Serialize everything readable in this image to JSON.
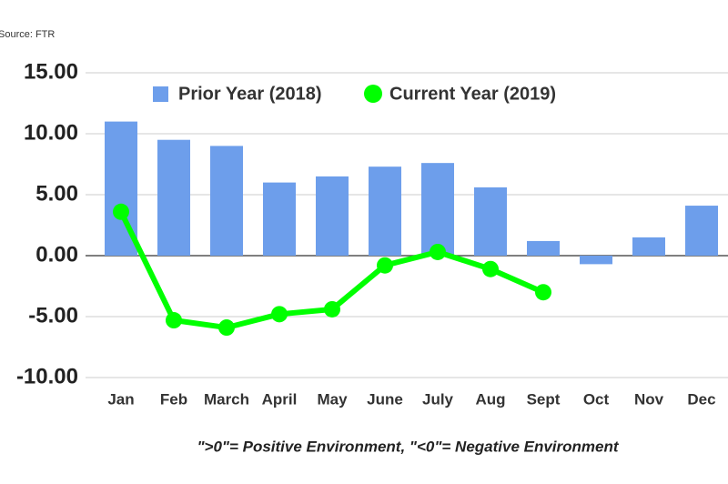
{
  "chart_data": {
    "type": "bar-line",
    "source": "Source: FTR",
    "annotation": "\">0\"= Positive Environment, \"<0\"= Negative Environment",
    "categories": [
      "Jan",
      "Feb",
      "March",
      "April",
      "May",
      "June",
      "July",
      "Aug",
      "Sept",
      "Oct",
      "Nov",
      "Dec"
    ],
    "series": [
      {
        "name": "Prior Year (2018)",
        "type": "bar",
        "color": "#6d9eeb",
        "values": [
          11.0,
          9.5,
          9.0,
          6.0,
          6.5,
          7.3,
          7.6,
          5.6,
          1.2,
          -0.7,
          1.5,
          4.1
        ]
      },
      {
        "name": "Current Year (2019)",
        "type": "line",
        "color": "#00ff00",
        "values": [
          3.6,
          -5.3,
          -5.9,
          -4.8,
          -4.4,
          -0.8,
          0.3,
          -1.1,
          -3.0,
          null,
          null,
          null
        ]
      }
    ],
    "ylim": [
      -10,
      15
    ],
    "yticks": [
      {
        "value": -10,
        "label": "-10.00"
      },
      {
        "value": -5,
        "label": "-5.00"
      },
      {
        "value": 0,
        "label": "0.00"
      },
      {
        "value": 5,
        "label": "5.00"
      },
      {
        "value": 10,
        "label": "10.00"
      },
      {
        "value": 15,
        "label": "15.00"
      }
    ],
    "grid": true
  }
}
